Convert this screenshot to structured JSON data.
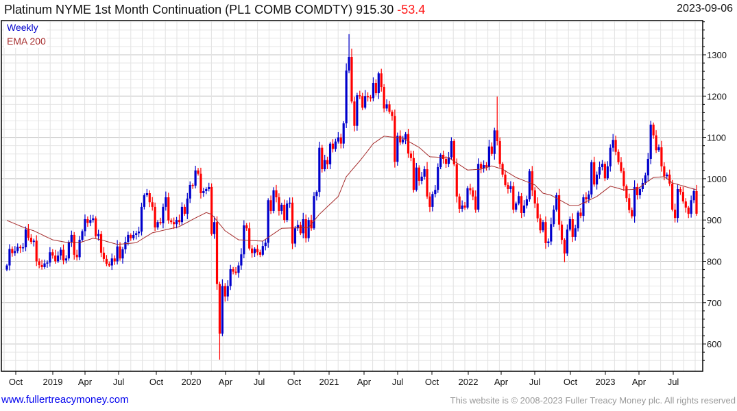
{
  "header": {
    "title": "Platinum NYME 1st Month Continuation (PL1 COMB COMDTY) 915.30",
    "change": "-53.4",
    "date": "2023-09-06"
  },
  "footer": {
    "url": "www.fullertreacymoney.com",
    "copyright": "This website is © 2008-2023 Fuller Treacy Money plc. All rights reserved"
  },
  "colors": {
    "up": "#0000cc",
    "down": "#ff0000",
    "ema": "#a52a2a",
    "grid": "#dddddd"
  },
  "chart_data": {
    "type": "candlestick",
    "title": "Platinum NYME 1st Month Continuation (PL1 COMB COMDTY)",
    "legend": [
      "Weekly",
      "EMA 200"
    ],
    "legend_placement": "top-left",
    "frequency": "weekly",
    "first_open": 780,
    "yaxis": {
      "position": "right",
      "ticks": [
        600,
        700,
        800,
        900,
        1000,
        1100,
        1200,
        1300
      ],
      "ylim": [
        540,
        1380
      ]
    },
    "xaxis": {
      "tick_labels": [
        "Oct",
        "2019",
        "Apr",
        "Jul",
        "Oct",
        "2020",
        "Apr",
        "Jul",
        "Oct",
        "2021",
        "Apr",
        "Jul",
        "Oct",
        "2022",
        "Apr",
        "Jul",
        "Oct",
        "2023",
        "Apr",
        "Jul"
      ]
    },
    "close": [
      790,
      830,
      820,
      825,
      835,
      832,
      834,
      877,
      857,
      847,
      850,
      800,
      791,
      786,
      795,
      797,
      822,
      814,
      800,
      814,
      828,
      802,
      807,
      847,
      864,
      816,
      810,
      852,
      873,
      902,
      893,
      900,
      904,
      861,
      866,
      821,
      806,
      794,
      790,
      807,
      800,
      836,
      807,
      829,
      847,
      864,
      856,
      864,
      868,
      872,
      932,
      960,
      965,
      943,
      932,
      882,
      895,
      892,
      932,
      955,
      899,
      895,
      890,
      900,
      895,
      932,
      915,
      952,
      985,
      983,
      1020,
      1012,
      965,
      970,
      975,
      980,
      866,
      895,
      745,
      625,
      740,
      715,
      740,
      781,
      775,
      772,
      790,
      817,
      887,
      880,
      831,
      820,
      830,
      822,
      816,
      837,
      845,
      948,
      922,
      972,
      955,
      922,
      937,
      900,
      940,
      942,
      843,
      880,
      888,
      868,
      902,
      856,
      900,
      880,
      958,
      968,
      1075,
      1023,
      1045,
      1035,
      1085,
      1072,
      1090,
      1100,
      1085,
      1134,
      1262,
      1295,
      1187,
      1128,
      1202,
      1200,
      1172,
      1200,
      1197,
      1195,
      1232,
      1207,
      1255,
      1222,
      1170,
      1180,
      1162,
      1152,
      1041,
      1104,
      1088,
      1095,
      1108,
      1061,
      1050,
      973,
      1027,
      995,
      1005,
      1023,
      957,
      932,
      963,
      973,
      1028,
      1058,
      1048,
      1036,
      1052,
      1091,
      1035,
      957,
      927,
      935,
      930,
      977,
      972,
      957,
      925,
      1036,
      1025,
      1033,
      1028,
      1078,
      1060,
      1117,
      1091,
      1036,
      1010,
      985,
      975,
      982,
      925,
      940,
      958,
      917,
      935,
      950,
      1018,
      972,
      940,
      904,
      875,
      895,
      844,
      848,
      890,
      925,
      960,
      889,
      852,
      819,
      877,
      902,
      859,
      880,
      918,
      910,
      955,
      950,
      962,
      1040,
      986,
      1010,
      1028,
      1036,
      1001,
      1030,
      1075,
      1094,
      1065,
      1040,
      1018,
      982,
      953,
      924,
      909,
      980,
      960,
      975,
      990,
      1008,
      1048,
      1131,
      1105,
      1069,
      1076,
      1030,
      1006,
      1010,
      988,
      925,
      905,
      975,
      968,
      945,
      930,
      915,
      948,
      970,
      915.3
    ],
    "notable_extremes": [
      {
        "week": 79,
        "low": 562
      },
      {
        "week": 127,
        "high": 1350
      },
      {
        "week": 182,
        "high": 1199
      },
      {
        "week": 207,
        "low": 798
      },
      {
        "week": 239,
        "high": 1140
      }
    ],
    "ema200": [
      [
        0,
        899
      ],
      [
        7,
        880
      ],
      [
        10,
        874
      ],
      [
        17,
        852
      ],
      [
        23,
        845
      ],
      [
        27,
        845
      ],
      [
        32,
        856
      ],
      [
        35,
        852
      ],
      [
        41,
        841
      ],
      [
        48,
        845
      ],
      [
        54,
        869
      ],
      [
        58,
        875
      ],
      [
        64,
        884
      ],
      [
        70,
        905
      ],
      [
        74,
        918
      ],
      [
        76,
        914
      ],
      [
        81,
        874
      ],
      [
        86,
        852
      ],
      [
        95,
        849
      ],
      [
        102,
        880
      ],
      [
        112,
        882
      ],
      [
        116,
        914
      ],
      [
        123,
        957
      ],
      [
        126,
        1005
      ],
      [
        132,
        1051
      ],
      [
        136,
        1085
      ],
      [
        140,
        1103
      ],
      [
        147,
        1098
      ],
      [
        153,
        1076
      ],
      [
        157,
        1053
      ],
      [
        164,
        1051
      ],
      [
        171,
        1021
      ],
      [
        176,
        1023
      ],
      [
        180,
        1031
      ],
      [
        184,
        1023
      ],
      [
        189,
        1003
      ],
      [
        196,
        985
      ],
      [
        199,
        965
      ],
      [
        202,
        960
      ],
      [
        209,
        935
      ],
      [
        212,
        935
      ],
      [
        219,
        957
      ],
      [
        224,
        982
      ],
      [
        229,
        973
      ],
      [
        234,
        975
      ],
      [
        240,
        1003
      ],
      [
        244,
        1005
      ],
      [
        247,
        990
      ],
      [
        256,
        973
      ]
    ]
  }
}
